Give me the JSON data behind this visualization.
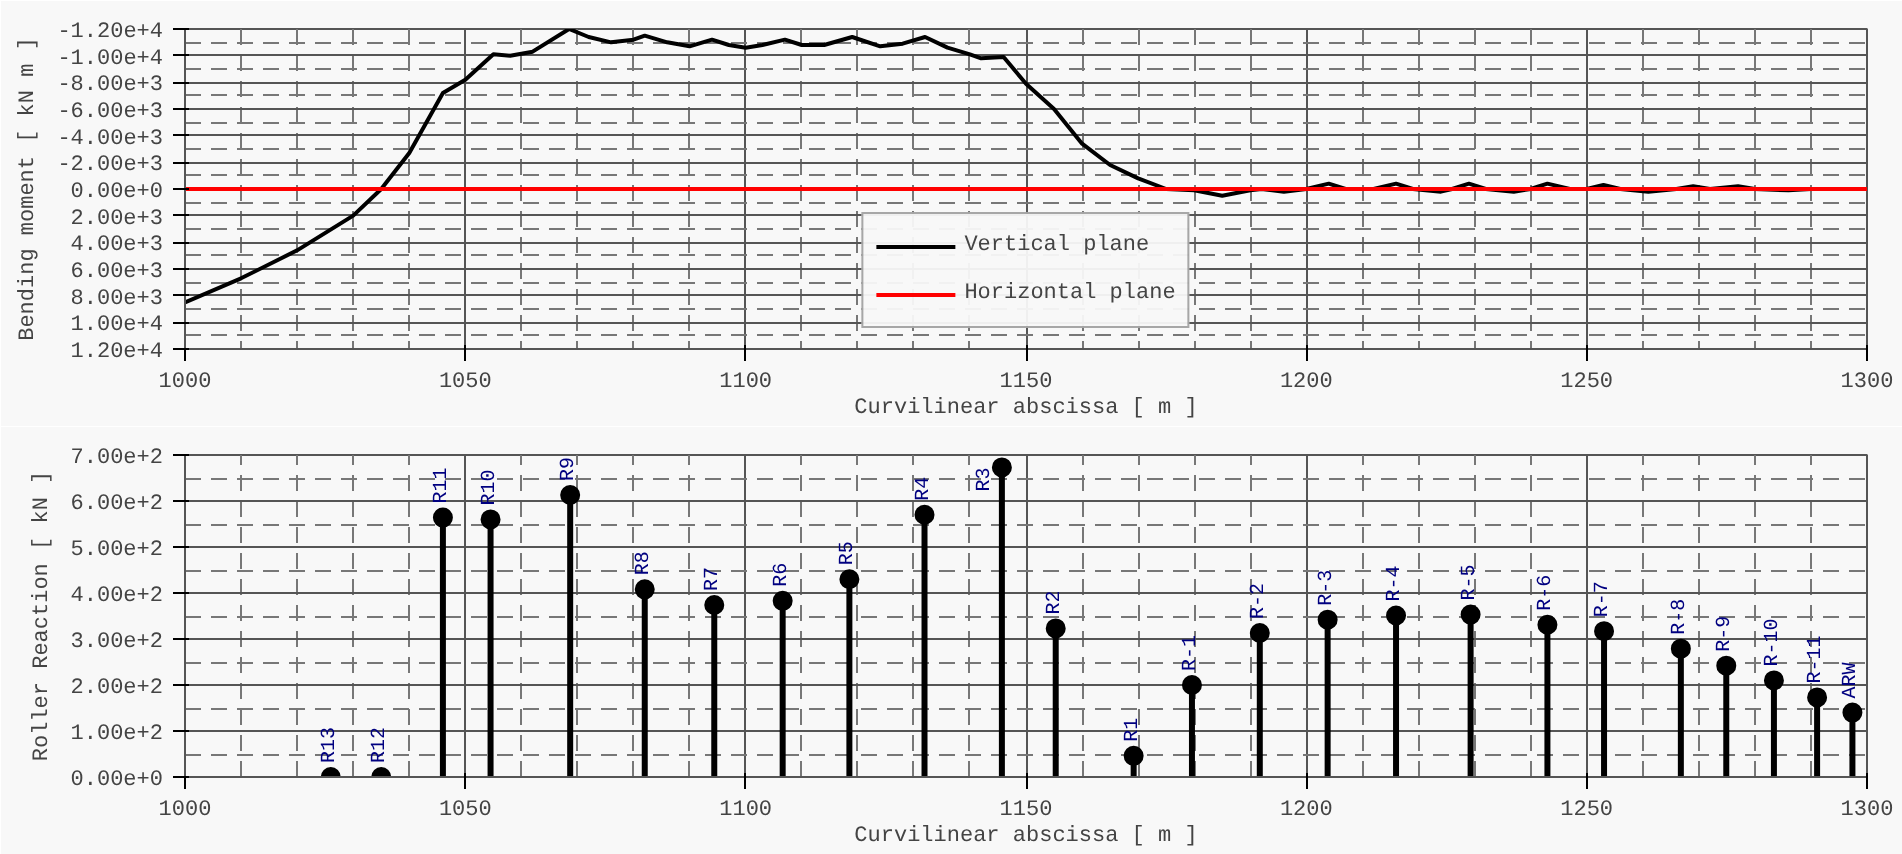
{
  "chart_data": [
    {
      "type": "line",
      "xlabel": "Curvilinear abscissa [ m ]",
      "ylabel": "Bending moment [ kN m ]",
      "series": [
        {
          "name": "Vertical plane",
          "color": "#000000",
          "x": [
            1000,
            1010,
            1020,
            1030,
            1035,
            1040,
            1046,
            1050,
            1055,
            1058,
            1062,
            1068.5,
            1072,
            1076,
            1080,
            1082,
            1086,
            1090,
            1094,
            1097,
            1100,
            1103,
            1107,
            1110,
            1114,
            1119,
            1124,
            1128,
            1132,
            1136,
            1140,
            1142,
            1146,
            1150,
            1155,
            1160,
            1165,
            1170,
            1175,
            1180,
            1185,
            1190,
            1192,
            1196,
            1200,
            1204,
            1207,
            1212,
            1216,
            1219,
            1224,
            1226,
            1229,
            1232,
            1237,
            1240,
            1243,
            1247,
            1250,
            1253,
            1256,
            1261,
            1266,
            1269,
            1272,
            1277,
            1280,
            1286,
            1290,
            1295,
            1300
          ],
          "values": [
            8500,
            6700,
            4600,
            2000,
            0,
            -2700,
            -7200,
            -8200,
            -10100,
            -10000,
            -10300,
            -12000,
            -11400,
            -11000,
            -11200,
            -11500,
            -11000,
            -10700,
            -11200,
            -10800,
            -10600,
            -10800,
            -11200,
            -10800,
            -10800,
            -11400,
            -10700,
            -10900,
            -11400,
            -10600,
            -10100,
            -9800,
            -9900,
            -7900,
            -6000,
            -3400,
            -1800,
            -800,
            0,
            100,
            500,
            100,
            0,
            200,
            0,
            -400,
            0,
            0,
            -400,
            0,
            200,
            0,
            -400,
            0,
            200,
            0,
            -400,
            0,
            0,
            -300,
            0,
            200,
            0,
            -200,
            0,
            -200,
            0,
            100,
            0,
            0,
            0
          ]
        },
        {
          "name": "Horizontal plane",
          "color": "#ff0000",
          "x": [
            1000,
            1300
          ],
          "values": [
            0,
            0
          ]
        }
      ],
      "xlim": [
        1000,
        1300
      ],
      "xticks": [
        1000,
        1050,
        1100,
        1150,
        1200,
        1250,
        1300
      ],
      "ylim": [
        12000,
        -12000
      ],
      "yticks": [
        {
          "value": -12000,
          "label": "-1.20e+4"
        },
        {
          "value": -10000,
          "label": "-1.00e+4"
        },
        {
          "value": -8000,
          "label": "-8.00e+3"
        },
        {
          "value": -6000,
          "label": "-6.00e+3"
        },
        {
          "value": -4000,
          "label": "-4.00e+3"
        },
        {
          "value": -2000,
          "label": "-2.00e+3"
        },
        {
          "value": 0,
          "label": "0.00e+0"
        },
        {
          "value": 2000,
          "label": "2.00e+3"
        },
        {
          "value": 4000,
          "label": "4.00e+3"
        },
        {
          "value": 6000,
          "label": "6.00e+3"
        },
        {
          "value": 8000,
          "label": "8.00e+3"
        },
        {
          "value": 10000,
          "label": "1.00e+4"
        },
        {
          "value": 12000,
          "label": "1.20e+4"
        }
      ],
      "grid": true,
      "legend": "bottom"
    },
    {
      "type": "lollipop",
      "xlabel": "Curvilinear abscissa [ m ]",
      "ylabel": "Roller Reaction [ kN ]",
      "x": [
        1026,
        1035,
        1046,
        1054.5,
        1068.7,
        1082,
        1094.4,
        1106.6,
        1118.5,
        1131.9,
        1145.7,
        1155.3,
        1169.2,
        1179.6,
        1191.7,
        1203.8,
        1216,
        1229.3,
        1243,
        1253.1,
        1266.8,
        1274.9,
        1283.4,
        1291.1,
        1297.4
      ],
      "values": [
        0,
        0,
        564,
        560,
        613,
        408,
        374,
        383,
        430,
        570,
        673,
        323,
        46,
        200,
        313,
        342,
        351,
        353,
        331,
        317,
        279,
        242,
        210,
        173,
        140
      ],
      "color": "#000000",
      "marker": "circle",
      "annotations": [
        {
          "text": "R13",
          "x": 1026,
          "y": 0
        },
        {
          "text": "R12",
          "x": 1035,
          "y": 0
        },
        {
          "text": "R11",
          "x": 1046,
          "y": 564
        },
        {
          "text": "R10",
          "x": 1054.5,
          "y": 560
        },
        {
          "text": "R9",
          "x": 1068.7,
          "y": 613
        },
        {
          "text": "R8",
          "x": 1082,
          "y": 408
        },
        {
          "text": "R7",
          "x": 1094.4,
          "y": 374
        },
        {
          "text": "R6",
          "x": 1106.6,
          "y": 383
        },
        {
          "text": "R5",
          "x": 1118.5,
          "y": 430
        },
        {
          "text": "R4",
          "x": 1131.9,
          "y": 570
        },
        {
          "text": "R3",
          "x": 1145.7,
          "y": 673
        },
        {
          "text": "R2",
          "x": 1155.3,
          "y": 323
        },
        {
          "text": "R1",
          "x": 1169.2,
          "y": 46
        },
        {
          "text": "R-1",
          "x": 1179.6,
          "y": 200
        },
        {
          "text": "R-2",
          "x": 1191.7,
          "y": 313
        },
        {
          "text": "R-3",
          "x": 1203.8,
          "y": 342
        },
        {
          "text": "R-4",
          "x": 1216,
          "y": 351
        },
        {
          "text": "R-5",
          "x": 1229.3,
          "y": 353
        },
        {
          "text": "R-6",
          "x": 1243,
          "y": 331
        },
        {
          "text": "R-7",
          "x": 1253.1,
          "y": 317
        },
        {
          "text": "R-8",
          "x": 1266.8,
          "y": 279
        },
        {
          "text": "R-9",
          "x": 1274.9,
          "y": 242
        },
        {
          "text": "R-10",
          "x": 1283.4,
          "y": 210
        },
        {
          "text": "R-11",
          "x": 1291.1,
          "y": 173
        },
        {
          "text": "ARW",
          "x": 1297.4,
          "y": 140
        }
      ],
      "xlim": [
        1000,
        1300
      ],
      "xticks": [
        1000,
        1050,
        1100,
        1150,
        1200,
        1250,
        1300
      ],
      "ylim": [
        0,
        700
      ],
      "yticks": [
        {
          "value": 0,
          "label": "0.00e+0"
        },
        {
          "value": 100,
          "label": "1.00e+2"
        },
        {
          "value": 200,
          "label": "2.00e+2"
        },
        {
          "value": 300,
          "label": "3.00e+2"
        },
        {
          "value": 400,
          "label": "4.00e+2"
        },
        {
          "value": 500,
          "label": "5.00e+2"
        },
        {
          "value": 600,
          "label": "6.00e+2"
        },
        {
          "value": 700,
          "label": "7.00e+2"
        }
      ],
      "grid": true
    }
  ]
}
